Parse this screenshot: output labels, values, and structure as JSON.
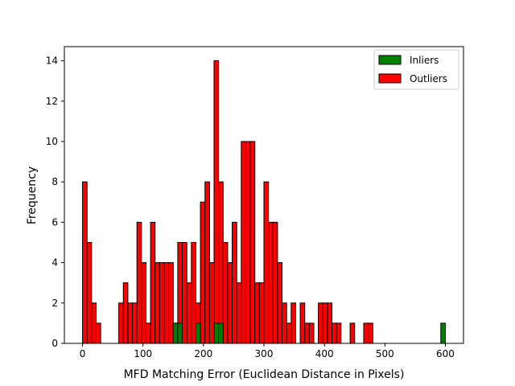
{
  "chart_data": {
    "type": "bar",
    "title": "",
    "xlabel": "MFD Matching Error (Euclidean Distance in Pixels)",
    "ylabel": "Frequency",
    "xlim": [
      -30,
      630
    ],
    "ylim": [
      0,
      14.7
    ],
    "xticks": [
      0,
      100,
      200,
      300,
      400,
      500,
      600
    ],
    "yticks": [
      0,
      2,
      4,
      6,
      8,
      10,
      12,
      14
    ],
    "bin_width": 7.5,
    "grid": false,
    "legend_position": "top-right",
    "series": [
      {
        "name": "Outliers",
        "color": "#ff0000",
        "x": [
          0,
          7.5,
          15,
          22.5,
          30,
          60,
          67.5,
          75,
          82.5,
          90,
          97.5,
          105,
          112.5,
          120,
          127.5,
          135,
          142.5,
          150,
          157.5,
          165,
          172.5,
          180,
          187.5,
          195,
          202.5,
          210,
          217.5,
          225,
          232.5,
          240,
          247.5,
          255,
          262.5,
          270,
          277.5,
          285,
          292.5,
          300,
          307.5,
          315,
          322.5,
          330,
          337.5,
          345,
          352.5,
          360,
          367.5,
          375,
          382.5,
          390,
          397.5,
          405,
          412.5,
          420,
          442.5,
          465,
          472.5,
          487.5,
          510,
          517.5,
          525,
          532.5,
          547.5,
          555,
          562.5
        ],
        "values": [
          8,
          5,
          2,
          1,
          0,
          2,
          3,
          2,
          2,
          6,
          4,
          1,
          6,
          4,
          4,
          4,
          4,
          1,
          5,
          5,
          3,
          5,
          2,
          7,
          8,
          4,
          14,
          8,
          5,
          4,
          6,
          3,
          10,
          10,
          10,
          3,
          3,
          8,
          6,
          6,
          4,
          2,
          1,
          2,
          0,
          2,
          1,
          1,
          0,
          2,
          2,
          2,
          1,
          1,
          1,
          1,
          1,
          0,
          0,
          0,
          0,
          0,
          0,
          0,
          0
        ]
      },
      {
        "name": "Inliers",
        "color": "#008000",
        "x": [
          150,
          157.5,
          187.5,
          217.5,
          225,
          592.5
        ],
        "values": [
          1,
          1,
          1,
          1,
          1,
          1
        ]
      }
    ]
  }
}
